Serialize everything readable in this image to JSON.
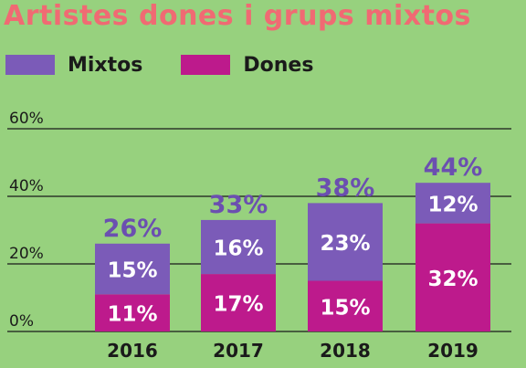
{
  "title": "Artistes dones i grups mixtos",
  "colors": {
    "background": "#97d17e",
    "title": "#f06a73",
    "mixtos": "#7b5bb8",
    "dones": "#bd1a8c",
    "total_label": "#6b4fb0"
  },
  "legend": [
    {
      "label": "Mixtos",
      "color": "#7b5bb8"
    },
    {
      "label": "Dones",
      "color": "#bd1a8c"
    }
  ],
  "chart_data": {
    "type": "bar",
    "stacked": true,
    "categories": [
      "2016",
      "2017",
      "2018",
      "2019"
    ],
    "series": [
      {
        "name": "Dones",
        "values": [
          11,
          17,
          15,
          32
        ],
        "labels": [
          "11%",
          "17%",
          "15%",
          "32%"
        ]
      },
      {
        "name": "Mixtos",
        "values": [
          15,
          16,
          23,
          12
        ],
        "labels": [
          "15%",
          "16%",
          "23%",
          "12%"
        ]
      }
    ],
    "totals": [
      26,
      33,
      38,
      44
    ],
    "total_labels": [
      "26%",
      "33%",
      "38%",
      "44%"
    ],
    "yticks": [
      "0%",
      "20%",
      "40%",
      "60%"
    ],
    "ytick_values": [
      0,
      20,
      40,
      60
    ],
    "ylim": [
      0,
      60
    ],
    "grid": true,
    "legend_position": "top-left"
  }
}
